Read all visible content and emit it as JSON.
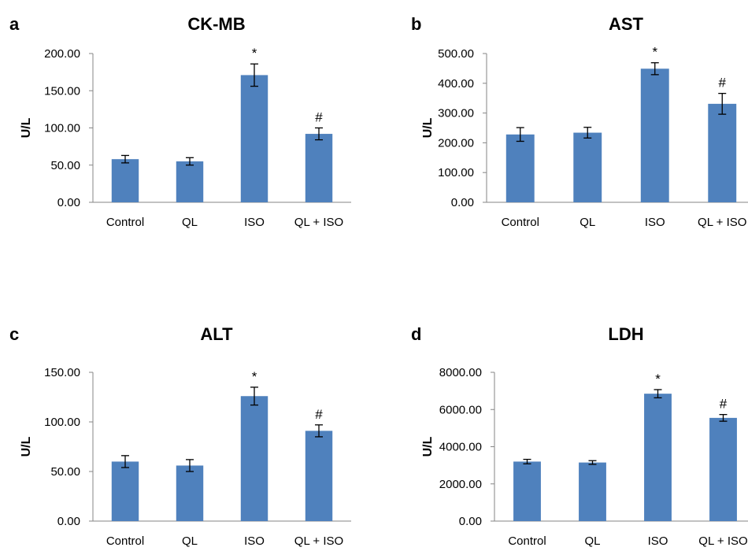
{
  "chart_data": [
    {
      "panel": "a",
      "type": "bar",
      "title": "CK-MB",
      "ylabel": "U/L",
      "categories": [
        "Control",
        "QL",
        "ISO",
        "QL + ISO"
      ],
      "values": [
        58,
        55,
        171,
        92
      ],
      "errors": [
        5,
        5,
        15,
        8
      ],
      "annotations": [
        "",
        "",
        "*",
        "#"
      ],
      "yticks": [
        "0.00",
        "50.00",
        "100.00",
        "150.00",
        "200.00"
      ],
      "ylim": [
        0,
        200
      ],
      "color": "#4f81bd"
    },
    {
      "panel": "b",
      "type": "bar",
      "title": "AST",
      "ylabel": "U/L",
      "categories": [
        "Control",
        "QL",
        "ISO",
        "QL + ISO"
      ],
      "values": [
        228,
        234,
        449,
        331
      ],
      "errors": [
        23,
        18,
        20,
        35
      ],
      "annotations": [
        "",
        "",
        "*",
        "#"
      ],
      "yticks": [
        "0.00",
        "100.00",
        "200.00",
        "300.00",
        "400.00",
        "500.00"
      ],
      "ylim": [
        0,
        500
      ],
      "color": "#4f81bd"
    },
    {
      "panel": "c",
      "type": "bar",
      "title": "ALT",
      "ylabel": "U/L",
      "categories": [
        "Control",
        "QL",
        "ISO",
        "QL + ISO"
      ],
      "values": [
        60,
        56,
        126,
        91
      ],
      "errors": [
        6,
        6,
        9,
        6
      ],
      "annotations": [
        "",
        "",
        "*",
        "#"
      ],
      "yticks": [
        "0.00",
        "50.00",
        "100.00",
        "150.00"
      ],
      "ylim": [
        0,
        150
      ],
      "color": "#4f81bd"
    },
    {
      "panel": "d",
      "type": "bar",
      "title": "LDH",
      "ylabel": "U/L",
      "categories": [
        "Control",
        "QL",
        "ISO",
        "QL + ISO"
      ],
      "values": [
        3200,
        3150,
        6850,
        5550
      ],
      "errors": [
        120,
        100,
        220,
        180
      ],
      "annotations": [
        "",
        "",
        "*",
        "#"
      ],
      "yticks": [
        "0.00",
        "2000.00",
        "4000.00",
        "6000.00",
        "8000.00"
      ],
      "ylim": [
        0,
        8000
      ],
      "color": "#4f81bd"
    }
  ]
}
